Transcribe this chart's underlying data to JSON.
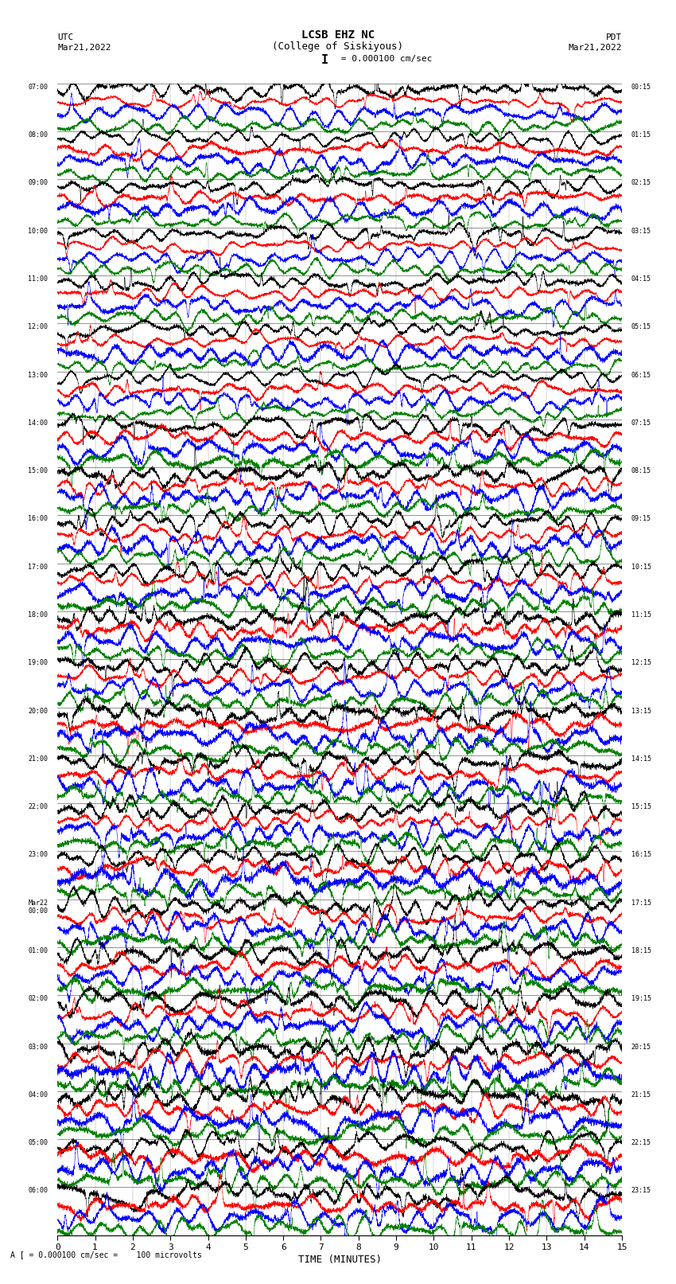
{
  "title_line1": "LCSB EHZ NC",
  "title_line2": "(College of Siskiyous)",
  "scale_text": "I = 0.000100 cm/sec",
  "left_label": "UTC",
  "right_label": "PDT",
  "left_date": "Mar21,2022",
  "right_date": "Mar21,2022",
  "bottom_label": "TIME (MINUTES)",
  "bottom_note": "A [ = 0.000100 cm/sec =    100 microvolts",
  "utc_times": [
    "07:00",
    "08:00",
    "09:00",
    "10:00",
    "11:00",
    "12:00",
    "13:00",
    "14:00",
    "15:00",
    "16:00",
    "17:00",
    "18:00",
    "19:00",
    "20:00",
    "21:00",
    "22:00",
    "23:00",
    "Mar22\n00:00",
    "01:00",
    "02:00",
    "03:00",
    "04:00",
    "05:00",
    "06:00"
  ],
  "pdt_times": [
    "00:15",
    "01:15",
    "02:15",
    "03:15",
    "04:15",
    "05:15",
    "06:15",
    "07:15",
    "08:15",
    "09:15",
    "10:15",
    "11:15",
    "12:15",
    "13:15",
    "14:15",
    "15:15",
    "16:15",
    "17:15",
    "18:15",
    "19:15",
    "20:15",
    "21:15",
    "22:15",
    "23:15"
  ],
  "n_rows": 24,
  "n_traces_per_row": 4,
  "colors": [
    "black",
    "red",
    "blue",
    "green"
  ],
  "x_min": 0,
  "x_max": 15,
  "x_ticks": [
    0,
    1,
    2,
    3,
    4,
    5,
    6,
    7,
    8,
    9,
    10,
    11,
    12,
    13,
    14,
    15
  ],
  "fig_width": 8.5,
  "fig_height": 16.13,
  "background_color": "white"
}
